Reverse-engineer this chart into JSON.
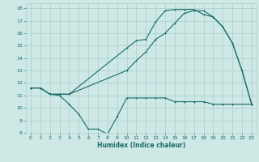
{
  "xlabel": "Humidex (Indice chaleur)",
  "background_color": "#cde8e5",
  "grid_color": "#aacfcc",
  "line_color": "#1a6b6b",
  "xlim": [
    -0.5,
    23.5
  ],
  "ylim": [
    8,
    18.4
  ],
  "xticks": [
    0,
    1,
    2,
    3,
    4,
    5,
    6,
    7,
    8,
    9,
    10,
    11,
    12,
    13,
    14,
    15,
    16,
    17,
    18,
    19,
    20,
    21,
    22,
    23
  ],
  "yticks": [
    8,
    9,
    10,
    11,
    12,
    13,
    14,
    15,
    16,
    17,
    18
  ],
  "series1_x": [
    0,
    1,
    2,
    3,
    4,
    5,
    6,
    7,
    8,
    9,
    10,
    11,
    12,
    13,
    14,
    15,
    16,
    17,
    18,
    19,
    20,
    21,
    23
  ],
  "series1_y": [
    11.6,
    11.6,
    11.1,
    11.0,
    10.3,
    9.5,
    8.3,
    8.3,
    7.9,
    9.3,
    10.8,
    10.8,
    10.8,
    10.8,
    10.8,
    10.5,
    10.5,
    10.5,
    10.5,
    10.3,
    10.3,
    10.3,
    10.3
  ],
  "series2_x": [
    0,
    1,
    2,
    3,
    4,
    10,
    11,
    12,
    13,
    14,
    15,
    16,
    17,
    18,
    19,
    20,
    21,
    22,
    23
  ],
  "series2_y": [
    11.6,
    11.6,
    11.1,
    11.1,
    11.1,
    14.8,
    15.4,
    15.5,
    16.9,
    17.8,
    17.9,
    17.9,
    17.9,
    17.5,
    17.3,
    16.5,
    15.2,
    13.0,
    10.3
  ],
  "series3_x": [
    0,
    1,
    2,
    3,
    4,
    10,
    11,
    12,
    13,
    14,
    15,
    16,
    17,
    18,
    19,
    20,
    21,
    22,
    23
  ],
  "series3_y": [
    11.6,
    11.6,
    11.1,
    11.1,
    11.1,
    13.0,
    13.8,
    14.5,
    15.5,
    16.0,
    16.8,
    17.6,
    17.8,
    17.8,
    17.3,
    16.5,
    15.2,
    13.0,
    10.3
  ]
}
